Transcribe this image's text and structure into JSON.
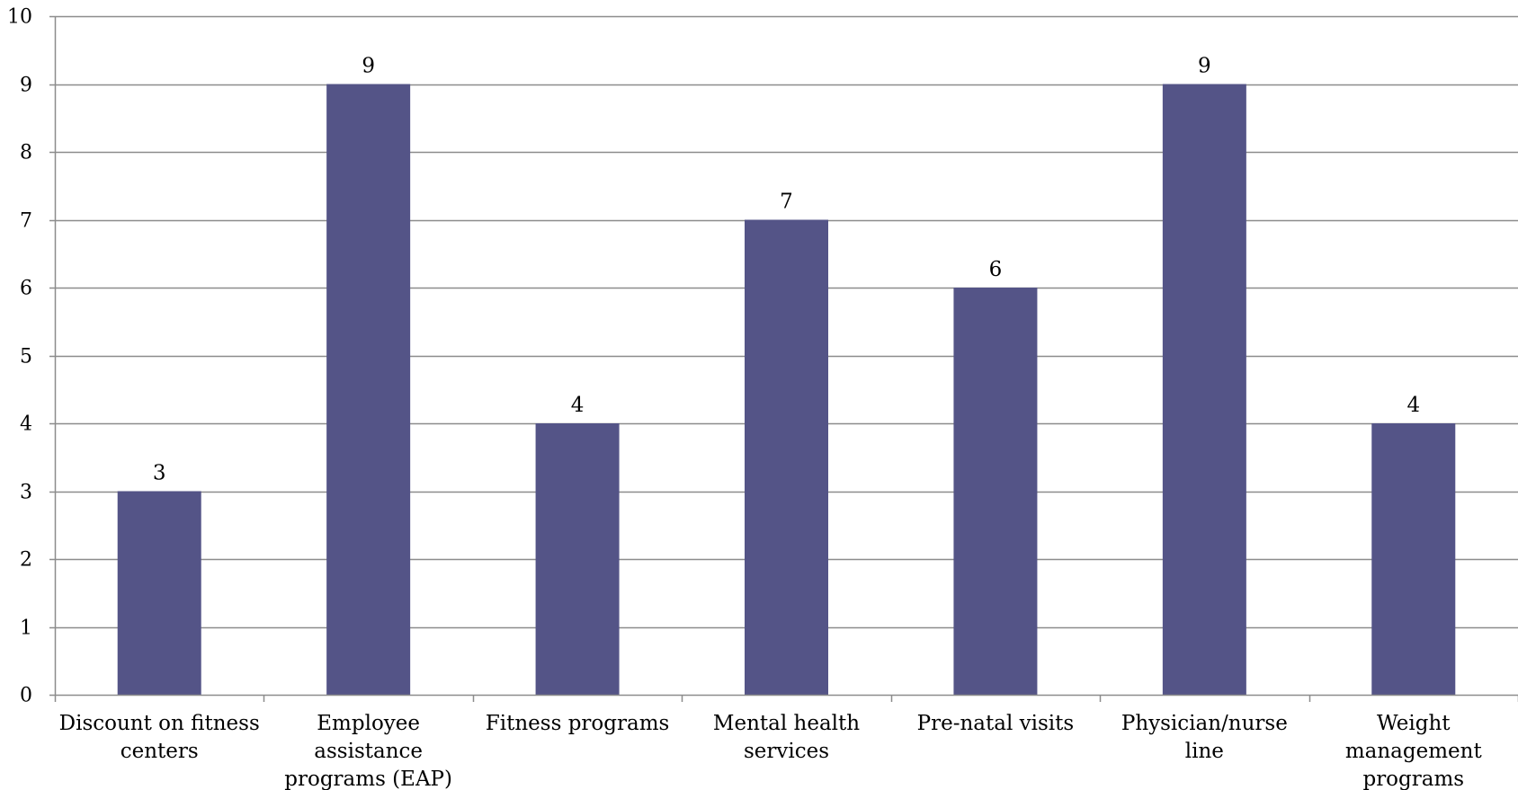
{
  "chart_data": {
    "type": "bar",
    "title": "",
    "xlabel": "",
    "ylabel": "",
    "categories": [
      [
        "Discount on fitness",
        "centers"
      ],
      [
        "Employee",
        "assistance",
        "programs (EAP)"
      ],
      [
        "Fitness programs"
      ],
      [
        "Mental health",
        "services"
      ],
      [
        "Pre-natal visits"
      ],
      [
        "Physician/nurse",
        "line"
      ],
      [
        "Weight",
        "management",
        "programs"
      ]
    ],
    "values": [
      3,
      9,
      4,
      7,
      6,
      9,
      4
    ],
    "ylim": [
      0,
      10
    ],
    "yticks": [
      0,
      1,
      2,
      3,
      4,
      5,
      6,
      7,
      8,
      9,
      10
    ],
    "grid": true,
    "legend": "none",
    "data_labels": true,
    "colors": {
      "bar": "#545487",
      "grid": "#8c8c8c",
      "axis": "#8c8c8c",
      "text": "#000000"
    }
  }
}
